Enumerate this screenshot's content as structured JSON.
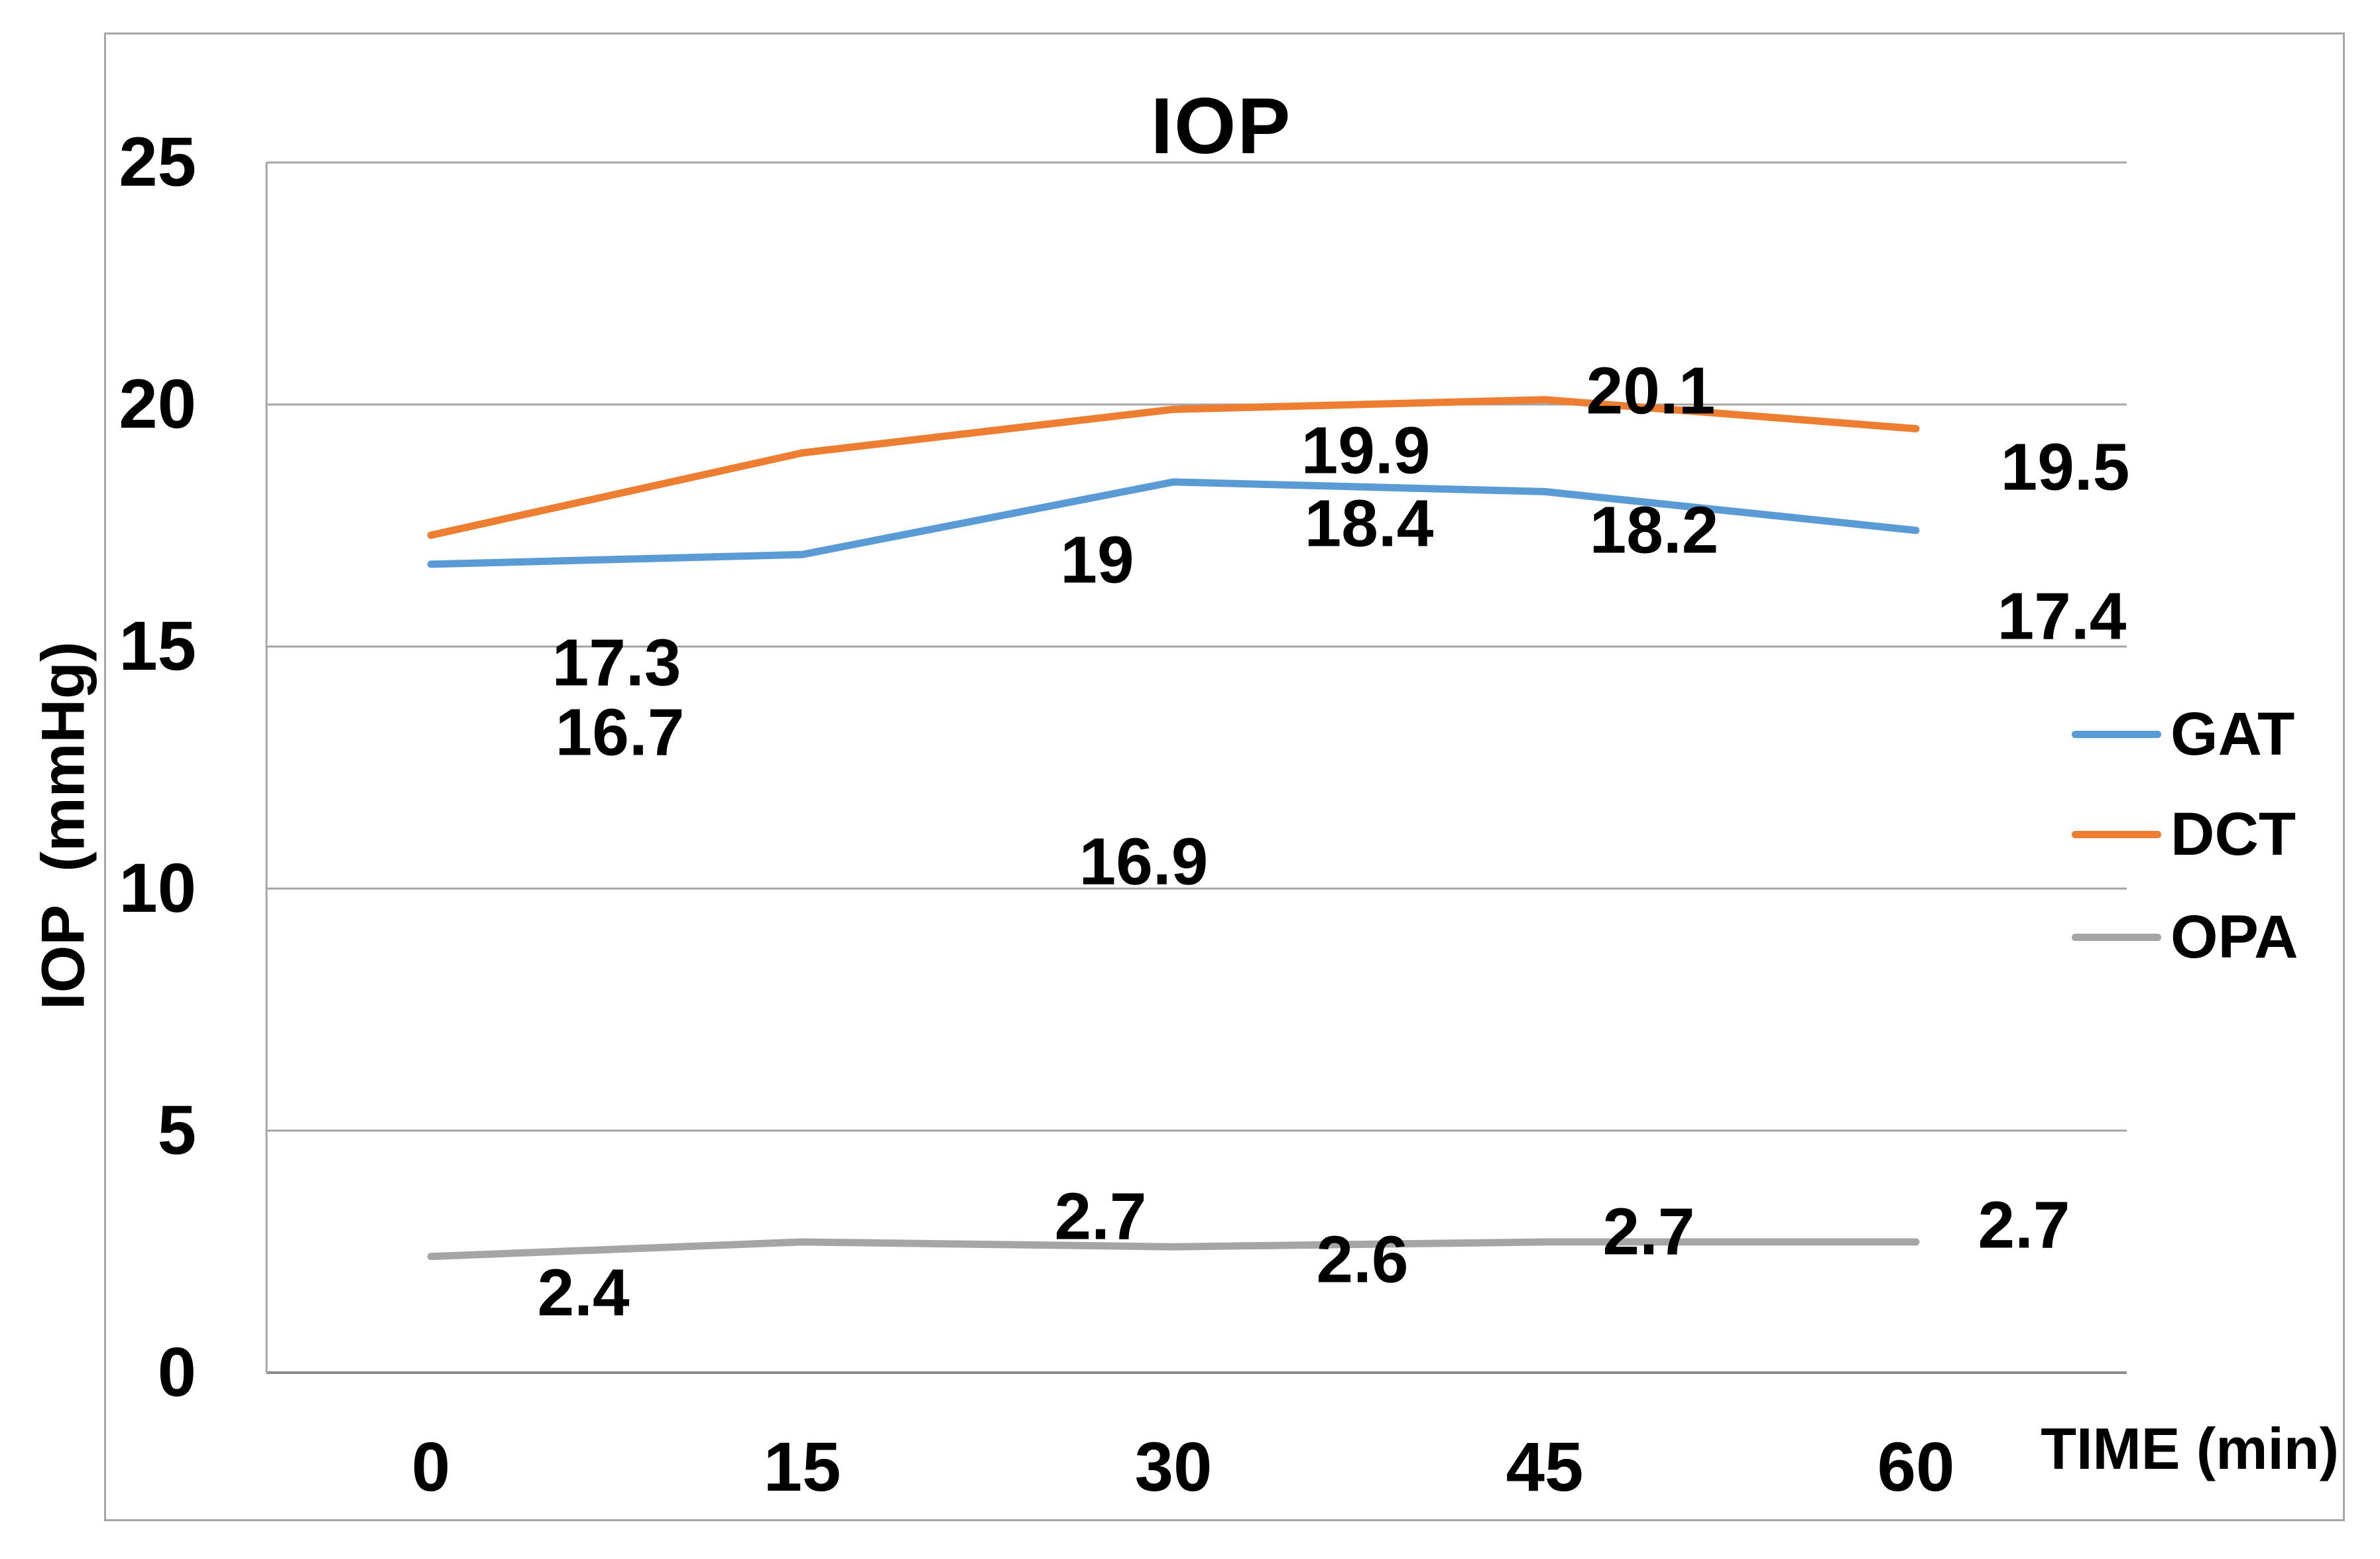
{
  "title": "IOP",
  "y_axis": {
    "title": "IOP  (mmHg)",
    "ticks": [
      "25",
      "20",
      "15",
      "10",
      "5",
      "0"
    ]
  },
  "x_axis": {
    "title": "TIME (min)",
    "ticks": [
      "0",
      "15",
      "30",
      "45",
      "60"
    ]
  },
  "legend": {
    "items": [
      {
        "label": "GAT",
        "color": "#5B9BD5"
      },
      {
        "label": "DCT",
        "color": "#ED7D31"
      },
      {
        "label": "OPA",
        "color": "#A5A5A5"
      }
    ]
  },
  "chart_data": {
    "type": "line",
    "title": "IOP",
    "xlabel": "TIME (min)",
    "ylabel": "IOP (mmHg)",
    "x": [
      0,
      15,
      30,
      45,
      60
    ],
    "ylim": [
      0,
      25
    ],
    "ytick_interval": 5,
    "grid": true,
    "legend_position": "right",
    "series": [
      {
        "name": "GAT",
        "color": "#5B9BD5",
        "values": [
          16.7,
          16.9,
          18.4,
          18.2,
          17.4
        ],
        "labels": [
          "16.7",
          "16.9",
          "18.4",
          "18.2",
          "17.4"
        ]
      },
      {
        "name": "DCT",
        "color": "#ED7D31",
        "values": [
          17.3,
          19,
          19.9,
          20.1,
          19.5
        ],
        "labels": [
          "17.3",
          "19",
          "19.9",
          "20.1",
          "19.5"
        ]
      },
      {
        "name": "OPA",
        "color": "#A5A5A5",
        "values": [
          2.4,
          2.7,
          2.6,
          2.7,
          2.7
        ],
        "labels": [
          "2.4",
          "2.7",
          "2.6",
          "2.7",
          "2.7"
        ]
      }
    ]
  }
}
